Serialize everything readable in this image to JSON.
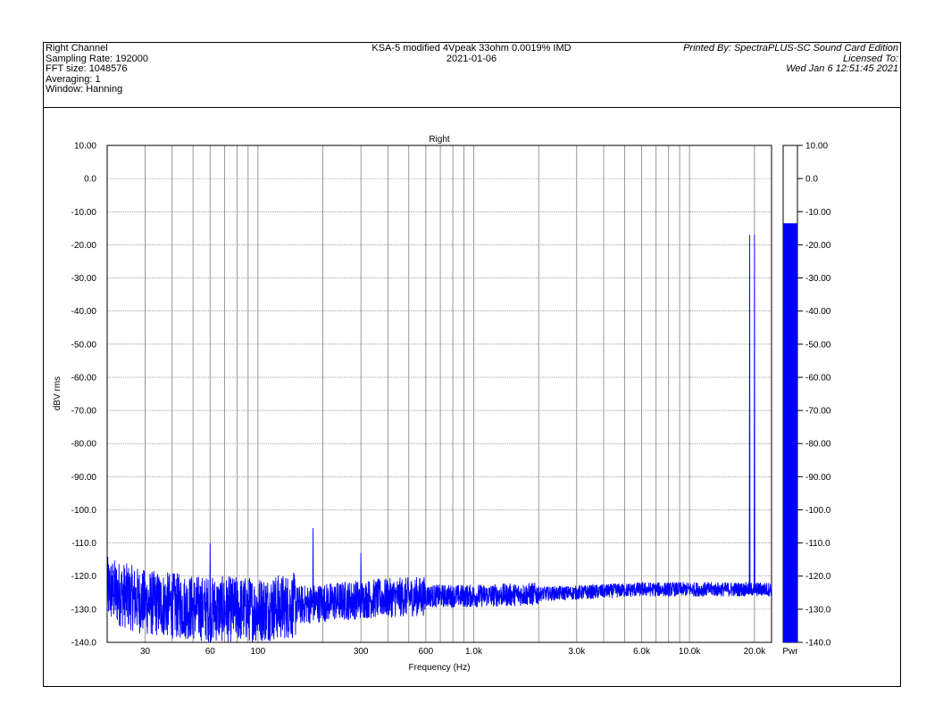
{
  "header": {
    "left": [
      "Right Channel",
      "Sampling Rate: 192000",
      "FFT size: 1048576",
      "Averaging: 1",
      "Window: Hanning"
    ],
    "center": [
      "KSA-5 modified 4Vpeak 33ohm 0.0019% IMD",
      "2021-01-06"
    ],
    "right": [
      "Printed By: SpectraPLUS-SC Sound Card Edition",
      "Licensed To:",
      "Wed Jan  6 12:51:45 2021"
    ]
  },
  "colors": {
    "trace": "#0000ff",
    "grid": "#808080",
    "meter_fill": "#0000ff"
  },
  "chart_data": {
    "type": "line",
    "title": "Right",
    "xlabel": "Frequency (Hz)",
    "ylabel": "dBV rms",
    "x_scale": "log",
    "xlim": [
      20,
      24000
    ],
    "ylim": [
      -140,
      10
    ],
    "grid": true,
    "x_ticks": [
      {
        "value": 30,
        "label": "30"
      },
      {
        "value": 60,
        "label": "60"
      },
      {
        "value": 100,
        "label": "100"
      },
      {
        "value": 300,
        "label": "300"
      },
      {
        "value": 600,
        "label": "600"
      },
      {
        "value": 1000,
        "label": "1.0k"
      },
      {
        "value": 3000,
        "label": "3.0k"
      },
      {
        "value": 6000,
        "label": "6.0k"
      },
      {
        "value": 10000,
        "label": "10.0k"
      },
      {
        "value": 20000,
        "label": "20.0k"
      }
    ],
    "y_ticks": [
      {
        "value": 10,
        "label": "10.00"
      },
      {
        "value": 0,
        "label": "0.0"
      },
      {
        "value": -10,
        "label": "-10.00"
      },
      {
        "value": -20,
        "label": "-20.00"
      },
      {
        "value": -30,
        "label": "-30.00"
      },
      {
        "value": -40,
        "label": "-40.00"
      },
      {
        "value": -50,
        "label": "-50.00"
      },
      {
        "value": -60,
        "label": "-60.00"
      },
      {
        "value": -70,
        "label": "-70.00"
      },
      {
        "value": -80,
        "label": "-80.00"
      },
      {
        "value": -90,
        "label": "-90.00"
      },
      {
        "value": -100,
        "label": "-100.0"
      },
      {
        "value": -110,
        "label": "-110.0"
      },
      {
        "value": -120,
        "label": "-120.0"
      },
      {
        "value": -130,
        "label": "-130.0"
      },
      {
        "value": -140,
        "label": "-140.0"
      }
    ],
    "series": [
      {
        "noise_floor": [
          [
            20,
            -124
          ],
          [
            30,
            -128
          ],
          [
            60,
            -130
          ],
          [
            100,
            -130
          ],
          [
            200,
            -128
          ],
          [
            300,
            -127
          ],
          [
            600,
            -126
          ],
          [
            1000,
            -126
          ],
          [
            3000,
            -125
          ],
          [
            6000,
            -124
          ],
          [
            10000,
            -124
          ],
          [
            20000,
            -124
          ],
          [
            24000,
            -124
          ]
        ],
        "peaks": [
          {
            "x": 60,
            "y": -110
          },
          {
            "x": 180,
            "y": -105.5
          },
          {
            "x": 300,
            "y": -113
          },
          {
            "x": 19000,
            "y": -17
          },
          {
            "x": 20000,
            "y": -17
          }
        ]
      }
    ],
    "level_meter": {
      "label": "Pwr",
      "value": -13.5,
      "ylim": [
        -140,
        10
      ]
    }
  }
}
